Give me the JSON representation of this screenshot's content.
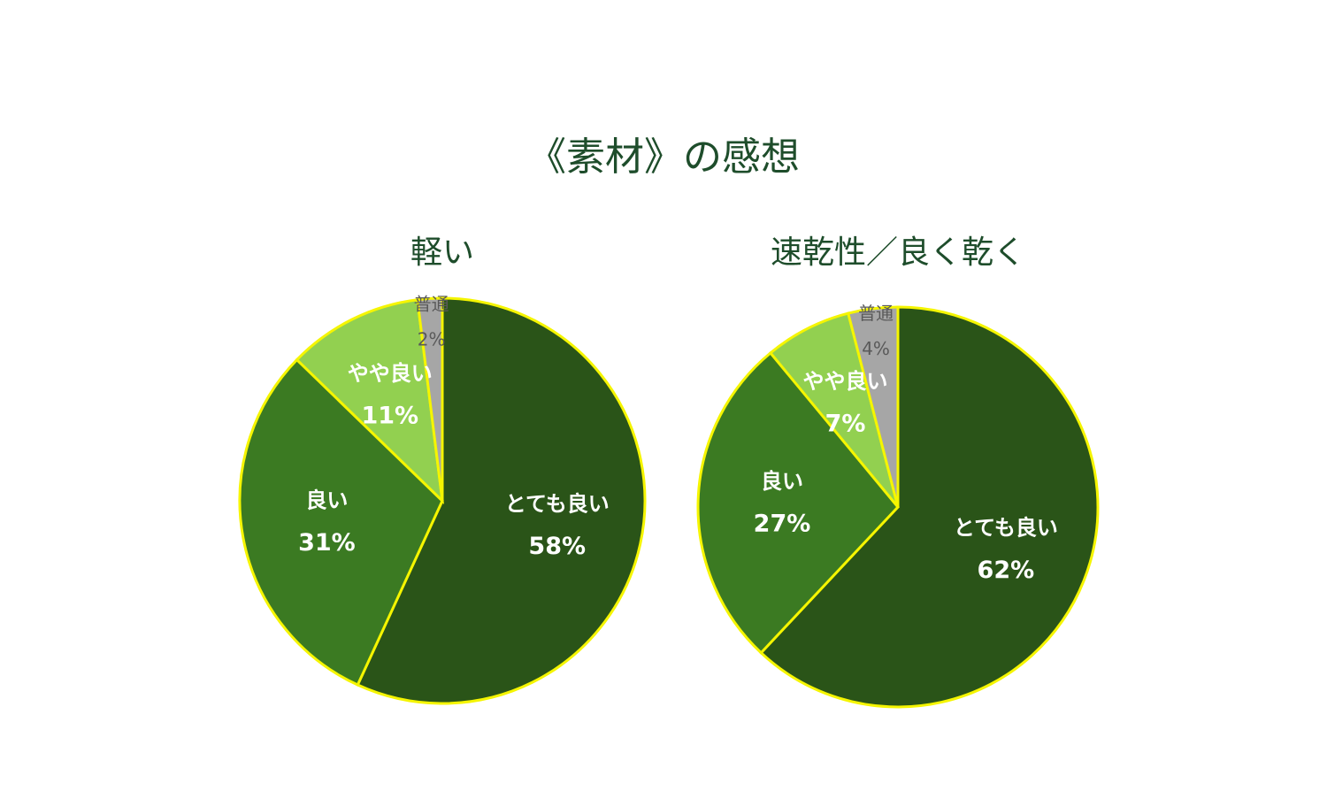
{
  "title": "《素材》の感想",
  "chart_data": [
    {
      "type": "pie",
      "title": "軽い",
      "categories": [
        "とても良い",
        "良い",
        "やや良い",
        "普通"
      ],
      "values": [
        58,
        31,
        11,
        2
      ],
      "value_labels": [
        "58%",
        "31%",
        "11%",
        "2%"
      ],
      "colors": [
        "#2a5418",
        "#3b7a22",
        "#92d050",
        "#a6a6a6"
      ]
    },
    {
      "type": "pie",
      "title": "速乾性／良く乾く",
      "categories": [
        "とても良い",
        "良い",
        "やや良い",
        "普通"
      ],
      "values": [
        62,
        27,
        7,
        4
      ],
      "value_labels": [
        "62%",
        "27%",
        "7%",
        "4%"
      ],
      "colors": [
        "#2a5418",
        "#3b7a22",
        "#92d050",
        "#a6a6a6"
      ]
    }
  ]
}
